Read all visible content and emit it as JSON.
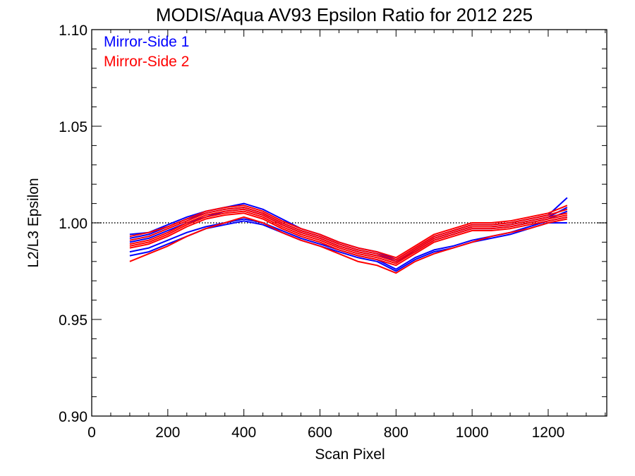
{
  "chart_data": {
    "type": "line",
    "title": "MODIS/Aqua AV93 Epsilon Ratio for 2012 225",
    "xlabel": "Scan Pixel",
    "ylabel": "L2/L3 Epsilon",
    "xlim": [
      0,
      1354
    ],
    "ylim": [
      0.9,
      1.1
    ],
    "x_ticks": [
      0,
      200,
      400,
      600,
      800,
      1000,
      1200
    ],
    "x_tick_labels": [
      "0",
      "200",
      "400",
      "600",
      "800",
      "1000",
      "1200"
    ],
    "y_ticks": [
      0.9,
      0.95,
      1.0,
      1.05,
      1.1
    ],
    "y_tick_labels": [
      "0.90",
      "0.95",
      "1.00",
      "1.05",
      "1.10"
    ],
    "grid": false,
    "reference_line": 1.0,
    "legend_position": "top-left",
    "colors": {
      "mirror_side_1": "#0000ff",
      "mirror_side_2": "#ff0000"
    },
    "x": [
      100,
      150,
      200,
      250,
      300,
      350,
      400,
      450,
      500,
      550,
      600,
      650,
      700,
      750,
      800,
      850,
      900,
      950,
      1000,
      1050,
      1100,
      1150,
      1200,
      1250
    ],
    "series": [
      {
        "name": "Mirror-Side 1",
        "color": "#0000ff",
        "lines": [
          [
            0.994,
            0.995,
            0.999,
            1.003,
            1.006,
            1.008,
            1.01,
            1.007,
            1.002,
            0.997,
            0.994,
            0.99,
            0.987,
            0.985,
            0.981,
            0.987,
            0.993,
            0.996,
            0.999,
            0.999,
            1.0,
            1.002,
            1.004,
            1.013
          ],
          [
            0.992,
            0.994,
            0.998,
            1.002,
            1.005,
            1.007,
            1.008,
            1.005,
            1.0,
            0.996,
            0.993,
            0.989,
            0.986,
            0.984,
            0.98,
            0.986,
            0.992,
            0.995,
            0.998,
            0.998,
            0.999,
            1.001,
            1.003,
            1.008
          ],
          [
            0.99,
            0.992,
            0.996,
            1.0,
            1.003,
            1.006,
            1.007,
            1.004,
            0.999,
            0.995,
            0.992,
            0.988,
            0.985,
            0.983,
            0.98,
            0.985,
            0.991,
            0.994,
            0.997,
            0.997,
            0.998,
            1.0,
            1.002,
            1.006
          ],
          [
            0.985,
            0.987,
            0.991,
            0.995,
            0.998,
            1.0,
            1.002,
            1.0,
            0.996,
            0.992,
            0.989,
            0.986,
            0.983,
            0.981,
            0.976,
            0.982,
            0.986,
            0.988,
            0.991,
            0.993,
            0.995,
            0.998,
            1.001,
            1.003
          ],
          [
            0.983,
            0.985,
            0.989,
            0.993,
            0.997,
            0.999,
            1.001,
            0.999,
            0.995,
            0.991,
            0.988,
            0.985,
            0.982,
            0.98,
            0.975,
            0.981,
            0.985,
            0.987,
            0.99,
            0.992,
            0.994,
            0.997,
            1.0,
            1.0
          ]
        ]
      },
      {
        "name": "Mirror-Side 2",
        "color": "#ff0000",
        "lines": [
          [
            0.993,
            0.995,
            0.998,
            1.002,
            1.006,
            1.008,
            1.009,
            1.006,
            1.001,
            0.997,
            0.994,
            0.99,
            0.987,
            0.985,
            0.982,
            0.988,
            0.994,
            0.997,
            1.0,
            1.0,
            1.001,
            1.003,
            1.005,
            1.009
          ],
          [
            0.991,
            0.993,
            0.997,
            1.001,
            1.005,
            1.007,
            1.008,
            1.005,
            1.0,
            0.996,
            0.993,
            0.989,
            0.986,
            0.984,
            0.981,
            0.987,
            0.993,
            0.996,
            0.999,
            0.999,
            1.0,
            1.002,
            1.004,
            1.007
          ],
          [
            0.989,
            0.991,
            0.995,
            1.0,
            1.004,
            1.006,
            1.007,
            1.004,
            0.999,
            0.995,
            0.992,
            0.988,
            0.985,
            0.983,
            0.98,
            0.986,
            0.992,
            0.995,
            0.998,
            0.998,
            0.999,
            1.001,
            1.003,
            1.005
          ],
          [
            0.988,
            0.99,
            0.994,
            0.999,
            1.003,
            1.005,
            1.006,
            1.003,
            0.998,
            0.994,
            0.991,
            0.987,
            0.984,
            0.982,
            0.979,
            0.985,
            0.991,
            0.994,
            0.997,
            0.997,
            0.998,
            1.0,
            1.002,
            1.004
          ],
          [
            0.987,
            0.989,
            0.993,
            0.998,
            1.002,
            1.004,
            1.005,
            1.002,
            0.997,
            0.993,
            0.99,
            0.986,
            0.983,
            0.981,
            0.978,
            0.984,
            0.99,
            0.993,
            0.996,
            0.996,
            0.997,
            0.999,
            1.001,
            1.003
          ],
          [
            0.98,
            0.984,
            0.988,
            0.993,
            0.997,
            1.0,
            1.003,
            1.0,
            0.995,
            0.991,
            0.988,
            0.984,
            0.98,
            0.978,
            0.974,
            0.98,
            0.984,
            0.987,
            0.99,
            0.993,
            0.995,
            0.997,
            1.0,
            1.002
          ]
        ]
      }
    ]
  }
}
